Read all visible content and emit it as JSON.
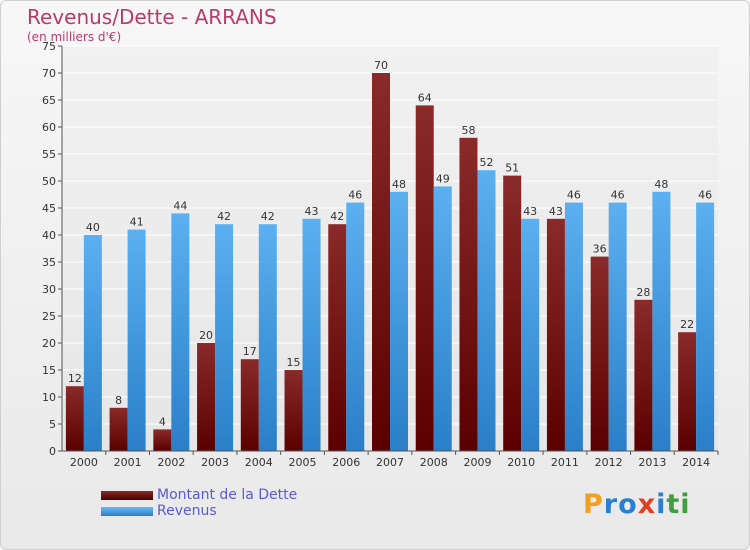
{
  "title": "Revenus/Dette - ARRANS",
  "subtitle": "(en milliers d'€)",
  "colors": {
    "dette": "#6b0a0a",
    "revenus": "#3a93d8",
    "title": "#b83b6b"
  },
  "legend": [
    {
      "label": "Montant de la Dette",
      "color": "#6b0a0a"
    },
    {
      "label": "Revenus",
      "color": "#3a93d8"
    }
  ],
  "logo": {
    "text": "Proxiti",
    "letters": [
      "P",
      "r",
      "o",
      "x",
      "i",
      "t",
      "i"
    ],
    "colors": [
      "#f0a020",
      "#2a7fd0",
      "#2a7fd0",
      "#e04020",
      "#2a7fd0",
      "#40a040",
      "#40a040"
    ]
  },
  "chart_data": {
    "type": "bar",
    "title": "Revenus/Dette - ARRANS",
    "subtitle": "(en milliers d'€)",
    "categories": [
      "2000",
      "2001",
      "2002",
      "2003",
      "2004",
      "2005",
      "2006",
      "2007",
      "2008",
      "2009",
      "2010",
      "2011",
      "2012",
      "2013",
      "2014"
    ],
    "series": [
      {
        "name": "Montant de la Dette",
        "values": [
          12,
          8,
          4,
          20,
          17,
          15,
          42,
          70,
          64,
          58,
          51,
          43,
          36,
          28,
          22
        ]
      },
      {
        "name": "Revenus",
        "values": [
          40,
          41,
          44,
          42,
          42,
          43,
          46,
          48,
          49,
          52,
          43,
          46,
          46,
          48,
          46
        ]
      }
    ],
    "ylim": [
      0,
      75
    ],
    "yticks": [
      0,
      5,
      10,
      15,
      20,
      25,
      30,
      35,
      40,
      45,
      50,
      55,
      60,
      65,
      70,
      75
    ],
    "grid": true,
    "legend_position": "bottom-left"
  }
}
